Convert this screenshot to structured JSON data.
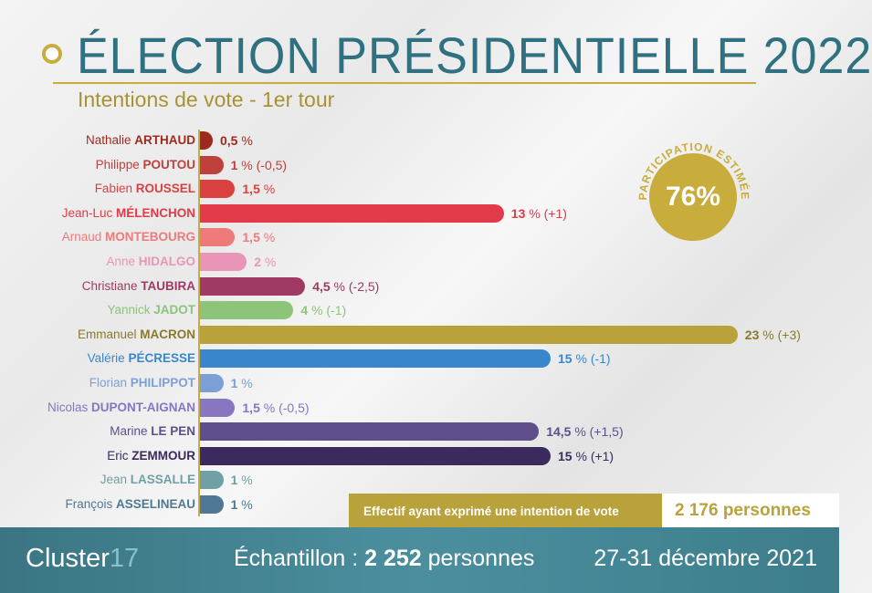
{
  "title": "ÉLECTION PRÉSIDENTIELLE 2022",
  "subtitle": "Intentions de vote - 1er tour",
  "participation": {
    "label": "PARTICIPATION ESTIMÉE",
    "value": "76%",
    "color": "#c8ac3c"
  },
  "effectif": {
    "label": "Effectif ayant exprimé une intention de vote",
    "value": "2 176 personnes"
  },
  "footer": {
    "logo": "Cluster",
    "logo_num": "17",
    "sample_label": "Échantillon : ",
    "sample_value": "2 252",
    "sample_unit": " personnes",
    "date": "27-31 décembre 2021"
  },
  "chart_data": {
    "type": "bar",
    "orientation": "horizontal",
    "unit": "%",
    "categories": [
      {
        "first": "Nathalie",
        "last": "ARTHAUD",
        "value": 0.5,
        "label": "0,5",
        "change": "",
        "color": "#9e2a1e"
      },
      {
        "first": "Philippe",
        "last": "POUTOU",
        "value": 1,
        "label": "1",
        "change": "(-0,5)",
        "color": "#c0403e"
      },
      {
        "first": "Fabien",
        "last": "ROUSSEL",
        "value": 1.5,
        "label": "1,5",
        "change": "",
        "color": "#d9403f"
      },
      {
        "first": "Jean-Luc",
        "last": "MÉLENCHON",
        "value": 13,
        "label": "13",
        "change": "(+1)",
        "color": "#e23a48"
      },
      {
        "first": "Arnaud",
        "last": "MONTEBOURG",
        "value": 1.5,
        "label": "1,5",
        "change": "",
        "color": "#ef7a7a"
      },
      {
        "first": "Anne",
        "last": "HIDALGO",
        "value": 2,
        "label": "2",
        "change": "",
        "color": "#e995b8"
      },
      {
        "first": "Christiane",
        "last": "TAUBIRA",
        "value": 4.5,
        "label": "4,5",
        "change": "(-2,5)",
        "color": "#9e3a64"
      },
      {
        "first": "Yannick",
        "last": "JADOT",
        "value": 4,
        "label": "4",
        "change": "(-1)",
        "color": "#8cc57a"
      },
      {
        "first": "Emmanuel",
        "last": "MACRON",
        "value": 23,
        "label": "23",
        "change": "(+3)",
        "color": "#b9a23c"
      },
      {
        "first": "Valérie",
        "last": "PÉCRESSE",
        "value": 15,
        "label": "15",
        "change": "(-1)",
        "color": "#3a86cc"
      },
      {
        "first": "Florian",
        "last": "PHILIPPOT",
        "value": 1,
        "label": "1",
        "change": "",
        "color": "#7d9fd8"
      },
      {
        "first": "Nicolas",
        "last": "DUPONT-AIGNAN",
        "value": 1.5,
        "label": "1,5",
        "change": "(-0,5)",
        "color": "#8876c0"
      },
      {
        "first": "Marine",
        "last": "LE PEN",
        "value": 14.5,
        "label": "14,5",
        "change": "(+1,5)",
        "color": "#5e4f8a"
      },
      {
        "first": "Eric",
        "last": "ZEMMOUR",
        "value": 15,
        "label": "15",
        "change": "(+1)",
        "color": "#3a2a5e"
      },
      {
        "first": "Jean",
        "last": "LASSALLE",
        "value": 1,
        "label": "1",
        "change": "",
        "color": "#6fa0a4"
      },
      {
        "first": "François",
        "last": "ASSELINEAU",
        "value": 1,
        "label": "1",
        "change": "",
        "color": "#4f7896"
      }
    ]
  }
}
